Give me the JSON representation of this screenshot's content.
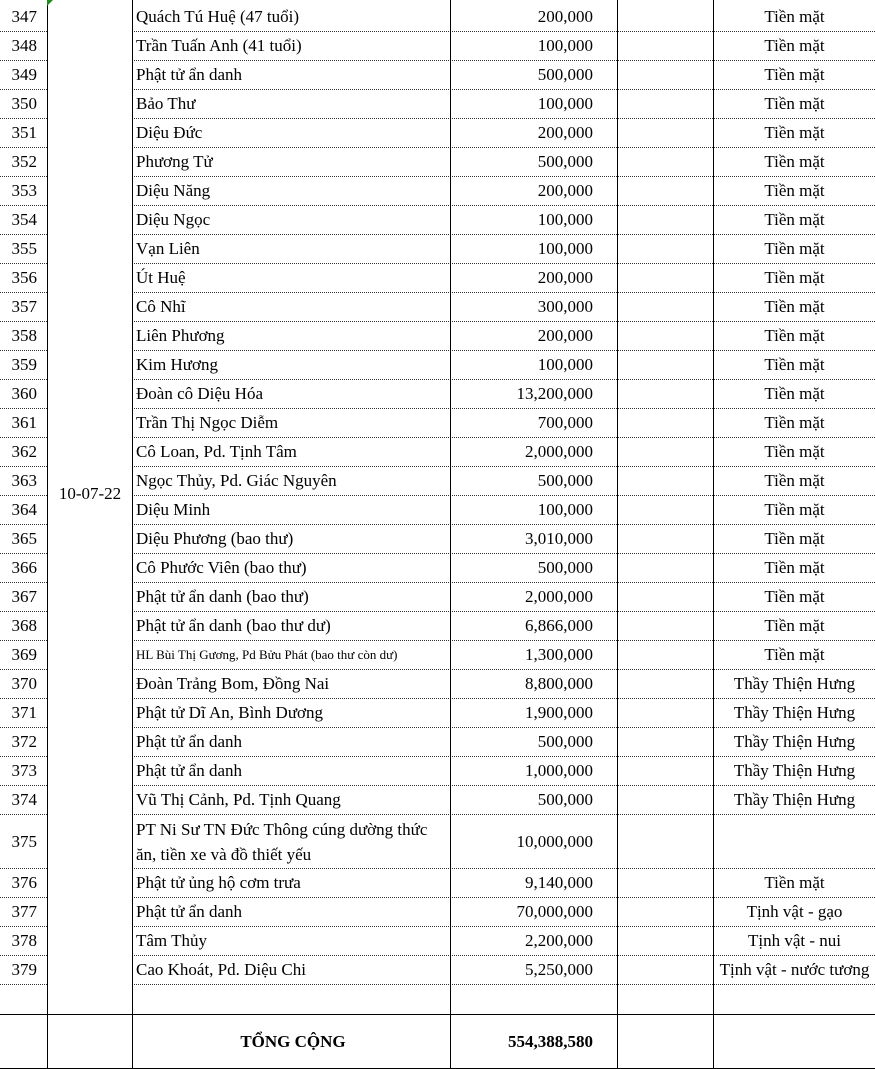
{
  "date": "10-07-22",
  "rows": [
    {
      "no": "347",
      "name": "Quách Tú Huệ (47 tuổi)",
      "amount": "200,000",
      "method": "Tiền mặt"
    },
    {
      "no": "348",
      "name": "Trần Tuấn Anh (41 tuổi)",
      "amount": "100,000",
      "method": "Tiền mặt"
    },
    {
      "no": "349",
      "name": "Phật tử ẩn danh",
      "amount": "500,000",
      "method": "Tiền mặt"
    },
    {
      "no": "350",
      "name": "Bảo Thư",
      "amount": "100,000",
      "method": "Tiền mặt"
    },
    {
      "no": "351",
      "name": "Diệu Đức",
      "amount": "200,000",
      "method": "Tiền mặt"
    },
    {
      "no": "352",
      "name": "Phương Tử",
      "amount": "500,000",
      "method": "Tiền mặt"
    },
    {
      "no": "353",
      "name": "Diệu Năng",
      "amount": "200,000",
      "method": "Tiền mặt"
    },
    {
      "no": "354",
      "name": "Diệu Ngọc",
      "amount": "100,000",
      "method": "Tiền mặt"
    },
    {
      "no": "355",
      "name": "Vạn Liên",
      "amount": "100,000",
      "method": "Tiền mặt"
    },
    {
      "no": "356",
      "name": "Út Huệ",
      "amount": "200,000",
      "method": "Tiền mặt"
    },
    {
      "no": "357",
      "name": "Cô Nhĩ",
      "amount": "300,000",
      "method": "Tiền mặt"
    },
    {
      "no": "358",
      "name": "Liên Phương",
      "amount": "200,000",
      "method": "Tiền mặt"
    },
    {
      "no": "359",
      "name": "Kim Hương",
      "amount": "100,000",
      "method": "Tiền mặt"
    },
    {
      "no": "360",
      "name": "Đoàn cô Diệu Hóa",
      "amount": "13,200,000",
      "method": "Tiền mặt"
    },
    {
      "no": "361",
      "name": "Trần Thị Ngọc Diễm",
      "amount": "700,000",
      "method": "Tiền mặt"
    },
    {
      "no": "362",
      "name": "Cô Loan, Pd. Tịnh Tâm",
      "amount": "2,000,000",
      "method": "Tiền mặt"
    },
    {
      "no": "363",
      "name": "Ngọc Thủy, Pd. Giác Nguyên",
      "amount": "500,000",
      "method": "Tiền mặt"
    },
    {
      "no": "364",
      "name": "Diệu Minh",
      "amount": "100,000",
      "method": "Tiền mặt"
    },
    {
      "no": "365",
      "name": "Diệu Phương (bao thư)",
      "amount": "3,010,000",
      "method": "Tiền mặt"
    },
    {
      "no": "366",
      "name": "Cô Phước Viên (bao thư)",
      "amount": "500,000",
      "method": "Tiền mặt"
    },
    {
      "no": "367",
      "name": "Phật tử ẩn danh (bao thư)",
      "amount": "2,000,000",
      "method": "Tiền mặt"
    },
    {
      "no": "368",
      "name": "Phật tử ẩn danh (bao thư dư)",
      "amount": "6,866,000",
      "method": "Tiền mặt"
    },
    {
      "no": "369",
      "name": "HL Bùi Thị Gương, Pd Bửu Phát (bao thư còn dư)",
      "amount": "1,300,000",
      "method": "Tiền mặt"
    },
    {
      "no": "370",
      "name": "Đoàn Trảng Bom, Đồng Nai",
      "amount": "8,800,000",
      "method": "Thầy Thiện Hưng"
    },
    {
      "no": "371",
      "name": "Phật tử Dĩ An, Bình Dương",
      "amount": "1,900,000",
      "method": "Thầy Thiện Hưng"
    },
    {
      "no": "372",
      "name": "Phật tử ẩn danh",
      "amount": "500,000",
      "method": "Thầy Thiện Hưng"
    },
    {
      "no": "373",
      "name": "Phật tử ẩn danh",
      "amount": "1,000,000",
      "method": "Thầy Thiện Hưng"
    },
    {
      "no": "374",
      "name": "Vũ Thị Cảnh, Pd. Tịnh Quang",
      "amount": "500,000",
      "method": "Thầy Thiện Hưng"
    },
    {
      "no": "375",
      "name": "PT Ni Sư TN Đức Thông cúng dường thức ăn, tiền xe và đồ thiết yếu",
      "amount": "10,000,000",
      "method": ""
    },
    {
      "no": "376",
      "name": "Phật tử ủng hộ cơm trưa",
      "amount": "9,140,000",
      "method": "Tiền mặt"
    },
    {
      "no": "377",
      "name": "Phật tử ẩn danh",
      "amount": "70,000,000",
      "method": "Tịnh vật - gạo"
    },
    {
      "no": "378",
      "name": "Tâm Thủy",
      "amount": "2,200,000",
      "method": "Tịnh vật - nui"
    },
    {
      "no": "379",
      "name": "Cao Khoát, Pd. Diệu Chi",
      "amount": "5,250,000",
      "method": "Tịnh vật - nước tương"
    }
  ],
  "total": {
    "label": "TỔNG CỘNG",
    "amount": "554,388,580"
  }
}
